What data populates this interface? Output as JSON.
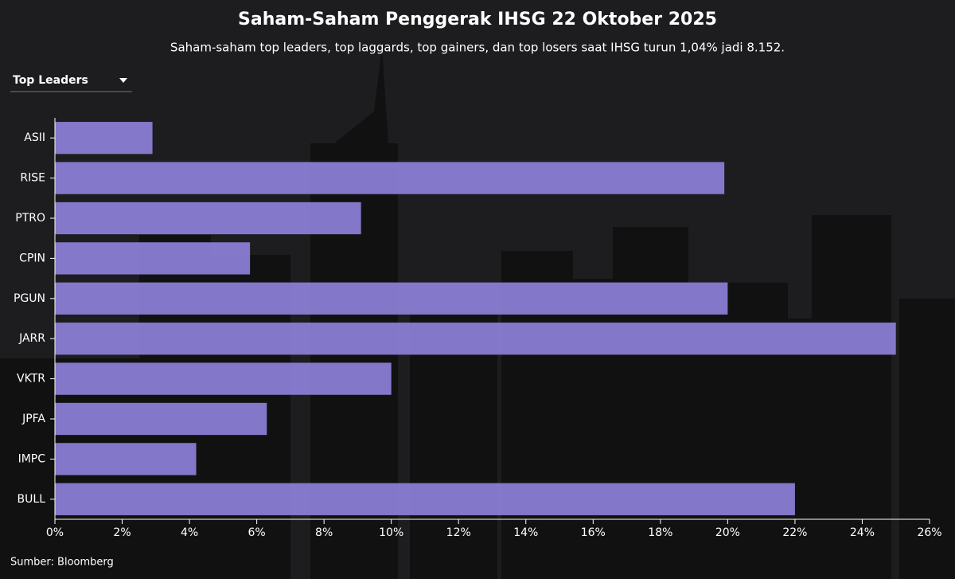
{
  "chart_data": {
    "type": "bar",
    "orientation": "horizontal",
    "title": "Saham-Saham Penggerak IHSG 22 Oktober 2025",
    "subtitle": "Saham-saham top leaders, top laggards, top gainers, dan top losers saat IHSG turun 1,04% jadi 8.152.",
    "dropdown": "Top Leaders",
    "source": "Sumber: Bloomberg",
    "categories": [
      "ASII",
      "RISE",
      "PTRO",
      "CPIN",
      "PGUN",
      "JARR",
      "VKTR",
      "JPFA",
      "IMPC",
      "BULL"
    ],
    "values": [
      2.9,
      19.9,
      9.1,
      5.8,
      20.0,
      25.0,
      10.0,
      6.3,
      4.2,
      22.0
    ],
    "color": "#8b7fd6",
    "xlim": [
      0,
      26
    ],
    "xticks": [
      {
        "value": 0,
        "label": "0%"
      },
      {
        "value": 2,
        "label": "2%"
      },
      {
        "value": 4,
        "label": "4%"
      },
      {
        "value": 6,
        "label": "6%"
      },
      {
        "value": 8,
        "label": "8%"
      },
      {
        "value": 10,
        "label": "10%"
      },
      {
        "value": 12,
        "label": "12%"
      },
      {
        "value": 14,
        "label": "14%"
      },
      {
        "value": 16,
        "label": "16%"
      },
      {
        "value": 18,
        "label": "18%"
      },
      {
        "value": 20,
        "label": "20%"
      },
      {
        "value": 22,
        "label": "22%"
      },
      {
        "value": 24,
        "label": "24%"
      },
      {
        "value": 26,
        "label": "26%"
      }
    ]
  }
}
